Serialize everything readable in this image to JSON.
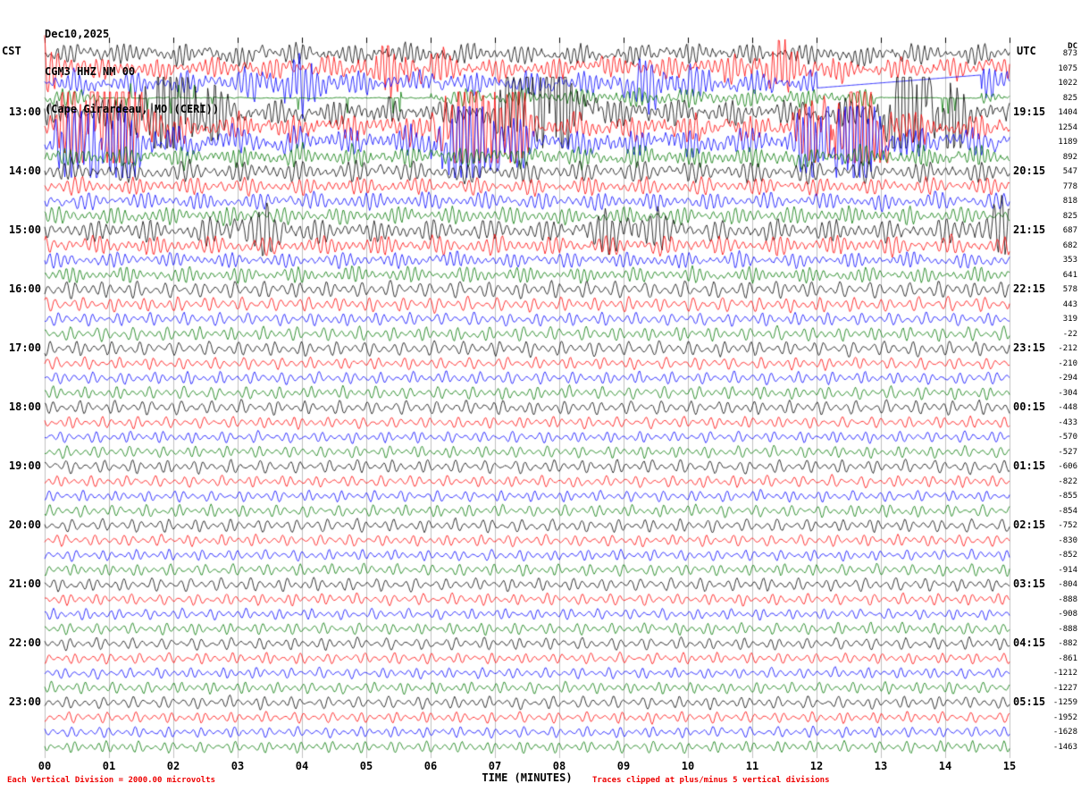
{
  "header": {
    "date": "Dec10,2025",
    "station": "CGM3 HHZ NM 00",
    "location": "(Cape Girardeau, MO (CERI))"
  },
  "axes": {
    "left_label": "CST",
    "right_label": "UTC",
    "dc_label": "DC",
    "x_title": "TIME (MINUTES)",
    "x_ticks": [
      "00",
      "01",
      "02",
      "03",
      "04",
      "05",
      "06",
      "07",
      "08",
      "09",
      "10",
      "11",
      "12",
      "13",
      "14",
      "15"
    ]
  },
  "footer": {
    "left_note": "Each Vertical Division = 2000.00 microvolts",
    "right_note": "Traces clipped at plus/minus 5 vertical divisions",
    "note_color": "#ee0000"
  },
  "chart_data": {
    "type": "line",
    "subtype": "helicorder_seismogram",
    "title": "CGM3 HHZ NM 00 (Cape Girardeau, MO (CERI)) Dec10,2025",
    "xlabel": "TIME (MINUTES)",
    "x_range_minutes": [
      0,
      15
    ],
    "minutes_per_line": 15,
    "grid": true,
    "grid_color": "#c0c0c0",
    "color_cycle": [
      "black",
      "red",
      "blue",
      "green"
    ],
    "color_map": {
      "black": "#000000",
      "red": "#ff0000",
      "blue": "#0000ff",
      "green": "#007700"
    },
    "vertical_division_microvolts": 2000.0,
    "clip_divisions": 5,
    "rows": [
      {
        "color": "black",
        "dc": 873,
        "amp": 0.5
      },
      {
        "color": "red",
        "dc": 1075,
        "amp": 0.55,
        "burst": 0.8
      },
      {
        "color": "blue",
        "dc": 1022,
        "amp": 0.55,
        "burst": 0.8,
        "gap": [
          0.8,
          0.97
        ]
      },
      {
        "color": "green",
        "dc": 825,
        "amp": 0.45,
        "quiet": [
          [
            0.06,
            0.4
          ],
          [
            0.86,
            0.97
          ]
        ]
      },
      {
        "color": "black",
        "cst": "13:00",
        "utc": "19:15",
        "dc": 1404,
        "amp": 0.6,
        "burst": 3.0
      },
      {
        "color": "red",
        "dc": 1254,
        "amp": 0.65,
        "burst": 3.4
      },
      {
        "color": "blue",
        "dc": 1189,
        "amp": 0.65,
        "burst": 2.8
      },
      {
        "color": "green",
        "dc": 892,
        "amp": 0.5
      },
      {
        "color": "black",
        "cst": "14:00",
        "utc": "20:15",
        "dc": 547,
        "amp": 0.55
      },
      {
        "color": "red",
        "dc": 778,
        "amp": 0.45
      },
      {
        "color": "blue",
        "dc": 818,
        "amp": 0.45
      },
      {
        "color": "green",
        "dc": 825,
        "amp": 0.45
      },
      {
        "color": "black",
        "cst": "15:00",
        "utc": "21:15",
        "dc": 687,
        "amp": 0.55,
        "burst": 0.8
      },
      {
        "color": "red",
        "dc": 682,
        "amp": 0.5
      },
      {
        "color": "blue",
        "dc": 353,
        "amp": 0.4
      },
      {
        "color": "green",
        "dc": 641,
        "amp": 0.4
      },
      {
        "color": "black",
        "cst": "16:00",
        "utc": "22:15",
        "dc": 578,
        "amp": 0.45
      },
      {
        "color": "red",
        "dc": 443,
        "amp": 0.4
      },
      {
        "color": "blue",
        "dc": 319,
        "amp": 0.35
      },
      {
        "color": "green",
        "dc": -22,
        "amp": 0.38
      },
      {
        "color": "black",
        "cst": "17:00",
        "utc": "23:15",
        "dc": -212,
        "amp": 0.4
      },
      {
        "color": "red",
        "dc": -210,
        "amp": 0.33
      },
      {
        "color": "blue",
        "dc": -294,
        "amp": 0.33
      },
      {
        "color": "green",
        "dc": -304,
        "amp": 0.34
      },
      {
        "color": "black",
        "cst": "18:00",
        "utc": "00:15",
        "dc": -448,
        "amp": 0.38
      },
      {
        "color": "red",
        "dc": -433,
        "amp": 0.31
      },
      {
        "color": "blue",
        "dc": -570,
        "amp": 0.3
      },
      {
        "color": "green",
        "dc": -527,
        "amp": 0.32
      },
      {
        "color": "black",
        "cst": "19:00",
        "utc": "01:15",
        "dc": -606,
        "amp": 0.36
      },
      {
        "color": "red",
        "dc": -822,
        "amp": 0.31
      },
      {
        "color": "blue",
        "dc": -855,
        "amp": 0.3
      },
      {
        "color": "green",
        "dc": -854,
        "amp": 0.32
      },
      {
        "color": "black",
        "cst": "20:00",
        "utc": "02:15",
        "dc": -752,
        "amp": 0.35
      },
      {
        "color": "red",
        "dc": -830,
        "amp": 0.31
      },
      {
        "color": "blue",
        "dc": -852,
        "amp": 0.29
      },
      {
        "color": "green",
        "dc": -914,
        "amp": 0.31
      },
      {
        "color": "black",
        "cst": "21:00",
        "utc": "03:15",
        "dc": -804,
        "amp": 0.35
      },
      {
        "color": "red",
        "dc": -888,
        "amp": 0.31
      },
      {
        "color": "blue",
        "dc": -908,
        "amp": 0.29
      },
      {
        "color": "green",
        "dc": -888,
        "amp": 0.31
      },
      {
        "color": "black",
        "cst": "22:00",
        "utc": "04:15",
        "dc": -882,
        "amp": 0.33
      },
      {
        "color": "red",
        "dc": -861,
        "amp": 0.3
      },
      {
        "color": "blue",
        "dc": -1212,
        "amp": 0.29
      },
      {
        "color": "green",
        "dc": -1227,
        "amp": 0.31
      },
      {
        "color": "black",
        "cst": "23:00",
        "utc": "05:15",
        "dc": -1259,
        "amp": 0.33
      },
      {
        "color": "red",
        "dc": -1952,
        "amp": 0.3
      },
      {
        "color": "blue",
        "dc": -1628,
        "amp": 0.29
      },
      {
        "color": "green",
        "dc": -1463,
        "amp": 0.31
      }
    ]
  }
}
